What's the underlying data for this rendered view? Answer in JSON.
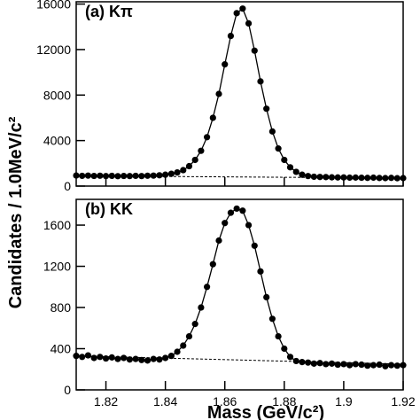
{
  "chart_data": [
    {
      "type": "scatter",
      "title": "(a) Kπ",
      "y_label": "Candidates / 1.0MeV/c²",
      "color": "#000000",
      "x": [
        1.81,
        1.812,
        1.814,
        1.816,
        1.818,
        1.82,
        1.822,
        1.824,
        1.826,
        1.828,
        1.83,
        1.832,
        1.834,
        1.836,
        1.838,
        1.84,
        1.842,
        1.844,
        1.846,
        1.848,
        1.85,
        1.852,
        1.854,
        1.856,
        1.858,
        1.86,
        1.862,
        1.864,
        1.866,
        1.868,
        1.87,
        1.872,
        1.874,
        1.876,
        1.878,
        1.88,
        1.882,
        1.884,
        1.886,
        1.888,
        1.89,
        1.892,
        1.894,
        1.896,
        1.898,
        1.9,
        1.902,
        1.904,
        1.906,
        1.908,
        1.91,
        1.912,
        1.914,
        1.916,
        1.918,
        1.92
      ],
      "values": [
        930,
        900,
        920,
        890,
        910,
        880,
        900,
        870,
        890,
        880,
        900,
        880,
        910,
        920,
        950,
        1000,
        1080,
        1200,
        1400,
        1750,
        2300,
        3100,
        4300,
        6000,
        8100,
        10700,
        13200,
        15200,
        15600,
        14300,
        11900,
        9200,
        6800,
        4800,
        3300,
        2300,
        1650,
        1250,
        1000,
        880,
        820,
        800,
        790,
        770,
        760,
        760,
        740,
        750,
        730,
        720,
        740,
        710,
        700,
        720,
        690,
        700
      ],
      "background": {
        "x": [
          1.81,
          1.92
        ],
        "values": [
          900,
          700
        ]
      },
      "xlim": [
        1.81,
        1.92
      ],
      "xticks": [
        1.82,
        1.84,
        1.86,
        1.88,
        1.9,
        1.92
      ],
      "ylim": [
        0,
        16200
      ],
      "yticks": [
        0,
        4000,
        8000,
        12000,
        16000
      ]
    },
    {
      "type": "scatter",
      "title": "(b) KK",
      "x_label": "Mass (GeV/c²)",
      "color": "#000000",
      "x": [
        1.81,
        1.812,
        1.814,
        1.816,
        1.818,
        1.82,
        1.822,
        1.824,
        1.826,
        1.828,
        1.83,
        1.832,
        1.834,
        1.836,
        1.838,
        1.84,
        1.842,
        1.844,
        1.846,
        1.848,
        1.85,
        1.852,
        1.854,
        1.856,
        1.858,
        1.86,
        1.862,
        1.864,
        1.866,
        1.868,
        1.87,
        1.872,
        1.874,
        1.876,
        1.878,
        1.88,
        1.882,
        1.884,
        1.886,
        1.888,
        1.89,
        1.892,
        1.894,
        1.896,
        1.898,
        1.9,
        1.902,
        1.904,
        1.906,
        1.908,
        1.91,
        1.912,
        1.914,
        1.916,
        1.918,
        1.92
      ],
      "values": [
        330,
        320,
        335,
        310,
        320,
        305,
        315,
        300,
        310,
        295,
        300,
        290,
        285,
        300,
        295,
        310,
        330,
        370,
        430,
        520,
        640,
        800,
        1000,
        1220,
        1450,
        1620,
        1720,
        1760,
        1740,
        1600,
        1400,
        1150,
        900,
        690,
        520,
        400,
        320,
        280,
        270,
        265,
        255,
        260,
        250,
        255,
        245,
        250,
        240,
        250,
        245,
        235,
        240,
        245,
        230,
        240,
        235,
        240
      ],
      "background": {
        "x": [
          1.81,
          1.92
        ],
        "values": [
          330,
          250
        ]
      },
      "xlim": [
        1.81,
        1.92
      ],
      "xticks": [
        1.82,
        1.84,
        1.86,
        1.88,
        1.9,
        1.92
      ],
      "ylim": [
        0,
        1850
      ],
      "yticks": [
        0,
        400,
        800,
        1200,
        1600
      ]
    }
  ]
}
